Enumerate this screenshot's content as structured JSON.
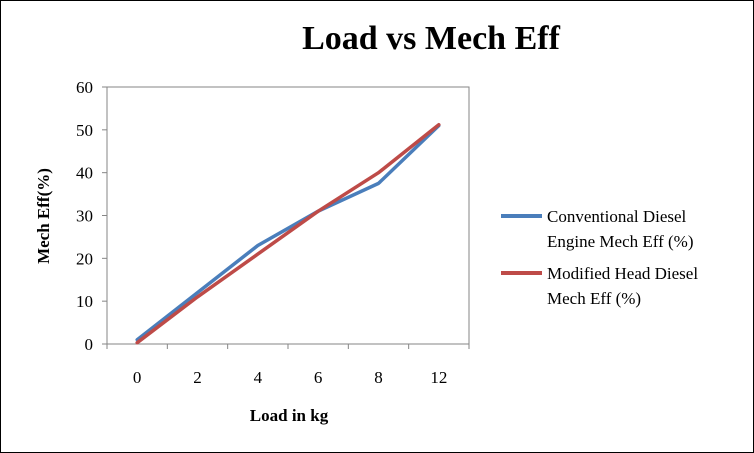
{
  "chart_data": {
    "type": "line",
    "title": "Load vs Mech Eff",
    "xlabel": "Load in kg",
    "ylabel": "Mech Eff(%)",
    "categories": [
      "0",
      "2",
      "4",
      "6",
      "8",
      "12"
    ],
    "ylim": [
      0,
      60
    ],
    "yticks": [
      "0",
      "10",
      "20",
      "30",
      "40",
      "50",
      "60"
    ],
    "grid": false,
    "legend_position": "right",
    "series": [
      {
        "name": "Conventional Diesel Engine Mech Eff (%)",
        "legend_lines": [
          "Conventional Diesel",
          "Engine Mech Eff (%)"
        ],
        "color": "#4a7ebb",
        "values": [
          1.0,
          12.0,
          23.0,
          31.0,
          37.5,
          51.0
        ]
      },
      {
        "name": "Modified Head Diesel Mech Eff (%)",
        "legend_lines": [
          "Modified Head Diesel",
          "Mech Eff (%)"
        ],
        "color": "#be4b48",
        "values": [
          0.3,
          11.0,
          21.0,
          31.0,
          40.0,
          51.2
        ]
      }
    ]
  }
}
